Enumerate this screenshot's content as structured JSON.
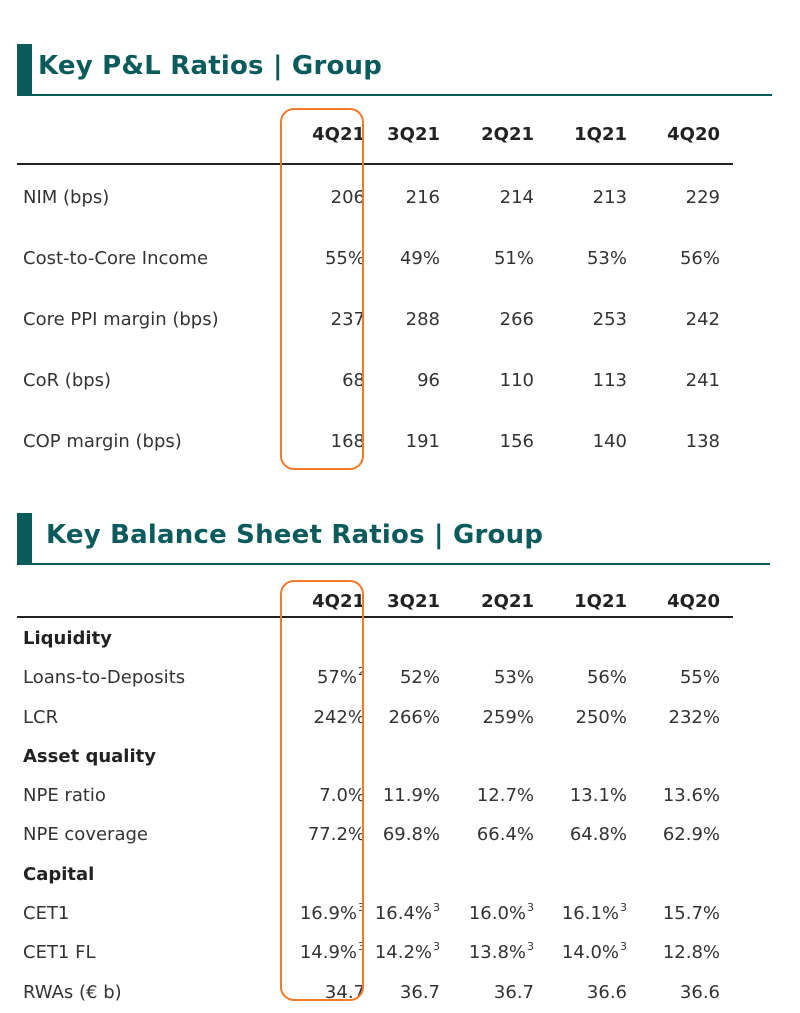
{
  "pl_section": {
    "title": "Key P&L Ratios | Group",
    "columns": [
      "4Q21",
      "3Q21",
      "2Q21",
      "1Q21",
      "4Q20"
    ],
    "rows": [
      {
        "label": "NIM (bps)",
        "values": [
          "206",
          "216",
          "214",
          "213",
          "229"
        ]
      },
      {
        "label": "Cost-to-Core Income",
        "values": [
          "55%",
          "49%",
          "51%",
          "53%",
          "56%"
        ]
      },
      {
        "label": "Core PPI margin (bps)",
        "values": [
          "237",
          "288",
          "266",
          "253",
          "242"
        ]
      },
      {
        "label": "CoR (bps)",
        "values": [
          "68",
          "96",
          "110",
          "113",
          "241"
        ]
      },
      {
        "label": "COP margin (bps)",
        "values": [
          "168",
          "191",
          "156",
          "140",
          "138"
        ]
      }
    ]
  },
  "bs_section": {
    "title": "Key Balance Sheet Ratios | Group",
    "columns": [
      "4Q21",
      "3Q21",
      "2Q21",
      "1Q21",
      "4Q20"
    ],
    "groups": {
      "liquidity": "Liquidity",
      "asset_quality": "Asset quality",
      "capital": "Capital"
    },
    "rows": [
      {
        "label": "Loans-to-Deposits",
        "values": [
          "57%",
          "52%",
          "53%",
          "56%",
          "55%"
        ],
        "sups": [
          "2",
          "",
          "",
          "",
          ""
        ]
      },
      {
        "label": "LCR",
        "values": [
          "242%",
          "266%",
          "259%",
          "250%",
          "232%"
        ],
        "sups": [
          "",
          "",
          "",
          "",
          ""
        ]
      },
      {
        "label": "NPE ratio",
        "values": [
          "7.0%",
          "11.9%",
          "12.7%",
          "13.1%",
          "13.6%"
        ],
        "sups": [
          "",
          "",
          "",
          "",
          ""
        ]
      },
      {
        "label": "NPE coverage",
        "values": [
          "77.2%",
          "69.8%",
          "66.4%",
          "64.8%",
          "62.9%"
        ],
        "sups": [
          "",
          "",
          "",
          "",
          ""
        ]
      },
      {
        "label": "CET1",
        "values": [
          "16.9%",
          "16.4%",
          "16.0%",
          "16.1%",
          "15.7%"
        ],
        "sups": [
          "3",
          "3",
          "3",
          "3",
          ""
        ]
      },
      {
        "label": "CET1 FL",
        "values": [
          "14.9%",
          "14.2%",
          "13.8%",
          "14.0%",
          "12.8%"
        ],
        "sups": [
          "3",
          "3",
          "3",
          "3",
          ""
        ]
      },
      {
        "label": "RWAs (€ b)",
        "values": [
          "34.7",
          "36.7",
          "36.7",
          "36.6",
          "36.6"
        ],
        "sups": [
          "",
          "",
          "",
          "",
          ""
        ]
      }
    ]
  },
  "colors": {
    "heading": "#0b5b5c",
    "highlight": "#f07a2a",
    "text": "#333333"
  }
}
